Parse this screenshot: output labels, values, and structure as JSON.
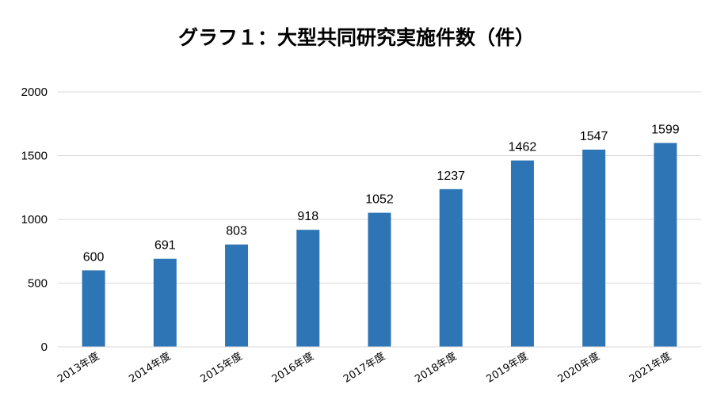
{
  "chart_data": {
    "type": "bar",
    "title": "グラフ１：大型共同研究実施件数（件）",
    "categories": [
      "2013年度",
      "2014年度",
      "2015年度",
      "2016年度",
      "2017年度",
      "2018年度",
      "2019年度",
      "2020年度",
      "2021年度"
    ],
    "values": [
      600,
      691,
      803,
      918,
      1052,
      1237,
      1462,
      1547,
      1599
    ],
    "xlabel": "",
    "ylabel": "",
    "ylim": [
      0,
      2000
    ],
    "yticks": [
      0,
      500,
      1000,
      1500,
      2000
    ],
    "grid": true,
    "legend": "none",
    "bar_color": "#2E75B6",
    "grid_color": "#D9D9D9"
  }
}
